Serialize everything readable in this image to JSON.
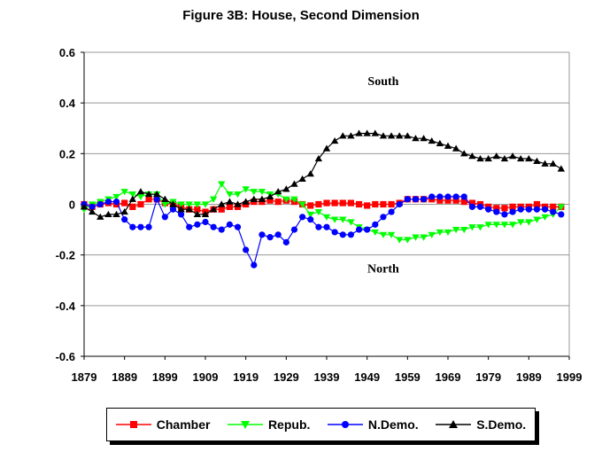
{
  "title": "Figure 3B:  House, Second Dimension",
  "chart_data": {
    "type": "line",
    "title": "Figure 3B:  House, Second Dimension",
    "xlabel": "",
    "ylabel": "",
    "x_ticks": [
      "1879",
      "1889",
      "1899",
      "1909",
      "1919",
      "1929",
      "1939",
      "1949",
      "1959",
      "1969",
      "1979",
      "1989",
      "1999"
    ],
    "y_ticks": [
      "0.6",
      "0.4",
      "0.2",
      "0",
      "-0.2",
      "-0.4",
      "-0.6"
    ],
    "xlim": [
      1879,
      1999
    ],
    "ylim": [
      -0.6,
      0.6
    ],
    "grid": "horizontal",
    "legend_position": "bottom",
    "annotations": [
      {
        "text": "South",
        "x": 1953,
        "y": 0.47
      },
      {
        "text": "North",
        "x": 1953,
        "y": -0.27
      }
    ],
    "series": [
      {
        "name": "Chamber",
        "color": "#ff0000",
        "marker": "square",
        "x": [
          1879,
          1881,
          1883,
          1885,
          1887,
          1889,
          1891,
          1893,
          1895,
          1897,
          1899,
          1901,
          1903,
          1905,
          1907,
          1909,
          1911,
          1913,
          1915,
          1917,
          1919,
          1921,
          1923,
          1925,
          1927,
          1929,
          1931,
          1933,
          1935,
          1937,
          1939,
          1941,
          1943,
          1945,
          1947,
          1949,
          1951,
          1953,
          1955,
          1957,
          1959,
          1961,
          1963,
          1965,
          1967,
          1969,
          1971,
          1973,
          1975,
          1977,
          1979,
          1981,
          1983,
          1985,
          1987,
          1989,
          1991,
          1993,
          1995,
          1997
        ],
        "y": [
          0.0,
          -0.01,
          0.0,
          0.005,
          0.0,
          0.005,
          -0.01,
          0.0,
          0.02,
          0.02,
          0.005,
          0.0,
          -0.01,
          -0.02,
          -0.02,
          -0.03,
          -0.02,
          -0.02,
          -0.01,
          -0.01,
          0.0,
          0.01,
          0.01,
          0.015,
          0.01,
          0.015,
          0.01,
          0.0,
          -0.005,
          0.0,
          0.005,
          0.005,
          0.005,
          0.005,
          0.0,
          -0.005,
          0.0,
          0.0,
          0.0,
          0.005,
          0.02,
          0.02,
          0.02,
          0.02,
          0.015,
          0.015,
          0.015,
          0.01,
          0.005,
          0.0,
          -0.01,
          -0.015,
          -0.015,
          -0.01,
          -0.01,
          -0.01,
          0.0,
          -0.01,
          -0.01,
          -0.01
        ]
      },
      {
        "name": "Repub.",
        "color": "#00ff00",
        "marker": "triangle-down",
        "x": [
          1879,
          1881,
          1883,
          1885,
          1887,
          1889,
          1891,
          1893,
          1895,
          1897,
          1899,
          1901,
          1903,
          1905,
          1907,
          1909,
          1911,
          1913,
          1915,
          1917,
          1919,
          1921,
          1923,
          1925,
          1927,
          1929,
          1931,
          1933,
          1935,
          1937,
          1939,
          1941,
          1943,
          1945,
          1947,
          1949,
          1951,
          1953,
          1955,
          1957,
          1959,
          1961,
          1963,
          1965,
          1967,
          1969,
          1971,
          1973,
          1975,
          1977,
          1979,
          1981,
          1983,
          1985,
          1987,
          1989,
          1991,
          1993,
          1995,
          1997
        ],
        "y": [
          -0.02,
          0.0,
          0.01,
          0.02,
          0.03,
          0.05,
          0.04,
          0.03,
          0.04,
          0.04,
          0.0,
          0.01,
          0.0,
          0.0,
          0.0,
          0.0,
          0.02,
          0.08,
          0.04,
          0.04,
          0.06,
          0.05,
          0.05,
          0.04,
          0.04,
          0.02,
          0.02,
          0.0,
          -0.04,
          -0.03,
          -0.05,
          -0.06,
          -0.06,
          -0.07,
          -0.09,
          -0.1,
          -0.11,
          -0.12,
          -0.12,
          -0.14,
          -0.14,
          -0.13,
          -0.13,
          -0.12,
          -0.11,
          -0.11,
          -0.1,
          -0.1,
          -0.09,
          -0.09,
          -0.08,
          -0.08,
          -0.08,
          -0.08,
          -0.07,
          -0.07,
          -0.06,
          -0.05,
          -0.04,
          -0.01
        ]
      },
      {
        "name": "N.Demo.",
        "color": "#0000ff",
        "marker": "circle",
        "x": [
          1879,
          1881,
          1883,
          1885,
          1887,
          1889,
          1891,
          1893,
          1895,
          1897,
          1899,
          1901,
          1903,
          1905,
          1907,
          1909,
          1911,
          1913,
          1915,
          1917,
          1919,
          1921,
          1923,
          1925,
          1927,
          1929,
          1931,
          1933,
          1935,
          1937,
          1939,
          1941,
          1943,
          1945,
          1947,
          1949,
          1951,
          1953,
          1955,
          1957,
          1959,
          1961,
          1963,
          1965,
          1967,
          1969,
          1971,
          1973,
          1975,
          1977,
          1979,
          1981,
          1983,
          1985,
          1987,
          1989,
          1991,
          1993,
          1995,
          1997
        ],
        "y": [
          0.0,
          -0.01,
          0.0,
          0.01,
          0.01,
          -0.06,
          -0.09,
          -0.09,
          -0.09,
          0.02,
          -0.05,
          -0.02,
          -0.04,
          -0.09,
          -0.08,
          -0.07,
          -0.09,
          -0.1,
          -0.08,
          -0.09,
          -0.18,
          -0.24,
          -0.12,
          -0.13,
          -0.12,
          -0.15,
          -0.1,
          -0.05,
          -0.06,
          -0.09,
          -0.09,
          -0.11,
          -0.12,
          -0.12,
          -0.1,
          -0.1,
          -0.08,
          -0.05,
          -0.03,
          0.0,
          0.02,
          0.02,
          0.02,
          0.03,
          0.03,
          0.03,
          0.03,
          0.03,
          -0.01,
          -0.01,
          -0.02,
          -0.03,
          -0.04,
          -0.03,
          -0.02,
          -0.02,
          -0.02,
          -0.02,
          -0.03,
          -0.04
        ]
      },
      {
        "name": "S.Demo.",
        "color": "#000000",
        "marker": "triangle-up",
        "x": [
          1879,
          1881,
          1883,
          1885,
          1887,
          1889,
          1891,
          1893,
          1895,
          1897,
          1899,
          1901,
          1903,
          1905,
          1907,
          1909,
          1911,
          1913,
          1915,
          1917,
          1919,
          1921,
          1923,
          1925,
          1927,
          1929,
          1931,
          1933,
          1935,
          1937,
          1939,
          1941,
          1943,
          1945,
          1947,
          1949,
          1951,
          1953,
          1955,
          1957,
          1959,
          1961,
          1963,
          1965,
          1967,
          1969,
          1971,
          1973,
          1975,
          1977,
          1979,
          1981,
          1983,
          1985,
          1987,
          1989,
          1991,
          1993,
          1995,
          1997
        ],
        "y": [
          -0.01,
          -0.03,
          -0.05,
          -0.04,
          -0.04,
          -0.03,
          0.02,
          0.05,
          0.04,
          0.04,
          0.02,
          0.0,
          -0.02,
          -0.02,
          -0.04,
          -0.04,
          -0.02,
          0.0,
          0.01,
          0.0,
          0.01,
          0.02,
          0.02,
          0.03,
          0.05,
          0.06,
          0.08,
          0.1,
          0.12,
          0.18,
          0.22,
          0.25,
          0.27,
          0.27,
          0.28,
          0.28,
          0.28,
          0.27,
          0.27,
          0.27,
          0.27,
          0.26,
          0.26,
          0.25,
          0.24,
          0.23,
          0.22,
          0.2,
          0.19,
          0.18,
          0.18,
          0.19,
          0.18,
          0.19,
          0.18,
          0.18,
          0.17,
          0.16,
          0.16,
          0.14
        ]
      }
    ]
  }
}
